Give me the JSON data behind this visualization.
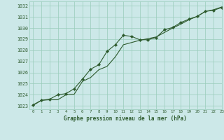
{
  "title": "Graphe pression niveau de la mer (hPa)",
  "bg_color": "#cce8e8",
  "grid_color": "#99ccbb",
  "line_color": "#2d5a2d",
  "xlim": [
    -0.5,
    23
  ],
  "ylim": [
    1022.7,
    1032.4
  ],
  "yticks": [
    1023,
    1024,
    1025,
    1026,
    1027,
    1028,
    1029,
    1030,
    1031,
    1032
  ],
  "xticks": [
    0,
    1,
    2,
    3,
    4,
    5,
    6,
    7,
    8,
    9,
    10,
    11,
    12,
    13,
    14,
    15,
    16,
    17,
    18,
    19,
    20,
    21,
    22,
    23
  ],
  "series1_x": [
    0,
    1,
    2,
    3,
    4,
    5,
    6,
    7,
    8,
    9,
    10,
    11,
    12,
    13,
    14,
    15,
    16,
    17,
    18,
    19,
    20,
    21,
    22,
    23
  ],
  "series1_y": [
    1023.1,
    1023.5,
    1023.55,
    1023.55,
    1024.0,
    1024.05,
    1025.2,
    1025.55,
    1026.25,
    1026.55,
    1027.4,
    1028.5,
    1028.7,
    1028.9,
    1029.05,
    1029.2,
    1029.6,
    1030.0,
    1030.35,
    1030.75,
    1031.05,
    1031.5,
    1031.65,
    1031.9
  ],
  "series2_x": [
    0,
    1,
    2,
    3,
    4,
    5,
    6,
    7,
    8,
    9,
    10,
    11,
    12,
    13,
    14,
    15,
    16,
    17,
    18,
    19,
    20,
    21,
    22,
    23
  ],
  "series2_y": [
    1023.05,
    1023.5,
    1023.6,
    1024.0,
    1024.1,
    1024.55,
    1025.4,
    1026.3,
    1026.7,
    1027.9,
    1028.5,
    1029.35,
    1029.25,
    1028.95,
    1028.95,
    1029.15,
    1029.85,
    1030.05,
    1030.5,
    1030.8,
    1031.05,
    1031.5,
    1031.6,
    1031.85
  ]
}
